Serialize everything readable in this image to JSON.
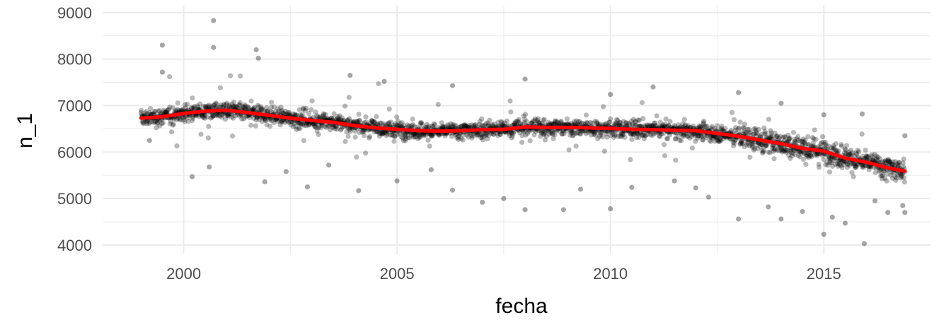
{
  "chart_data": {
    "type": "scatter",
    "xlabel": "fecha",
    "ylabel": "n_1",
    "xlim": [
      1998.1,
      2017.5
    ],
    "ylim": [
      3800,
      9150
    ],
    "x_ticks": [
      2000,
      2005,
      2010,
      2015
    ],
    "x_tick_labels": [
      "2000",
      "2005",
      "2010",
      "2015"
    ],
    "y_ticks": [
      4000,
      5000,
      6000,
      7000,
      8000,
      9000
    ],
    "y_tick_labels": [
      "4000",
      "5000",
      "6000",
      "7000",
      "8000",
      "9000"
    ],
    "grid": true,
    "legend": "none",
    "colors": {
      "points": "#000000",
      "trend": "#ff0000",
      "grid": "#ebebeb"
    },
    "trend": {
      "x": [
        1999.0,
        1999.5,
        2000.0,
        2000.5,
        2001.0,
        2001.5,
        2002.0,
        2002.5,
        2003.0,
        2003.5,
        2004.0,
        2004.5,
        2005.0,
        2005.5,
        2006.0,
        2006.5,
        2007.0,
        2007.5,
        2008.0,
        2008.5,
        2009.0,
        2009.5,
        2010.0,
        2010.5,
        2011.0,
        2011.5,
        2012.0,
        2012.5,
        2013.0,
        2013.5,
        2014.0,
        2014.5,
        2015.0,
        2015.5,
        2016.0,
        2016.5,
        2016.9
      ],
      "y": [
        6730,
        6760,
        6830,
        6880,
        6900,
        6850,
        6790,
        6730,
        6680,
        6640,
        6570,
        6520,
        6490,
        6460,
        6450,
        6460,
        6480,
        6490,
        6540,
        6530,
        6530,
        6520,
        6510,
        6490,
        6480,
        6470,
        6460,
        6400,
        6340,
        6260,
        6180,
        6080,
        6020,
        5870,
        5780,
        5660,
        5590
      ]
    },
    "outliers": {
      "x": [
        1999.5,
        2000.7,
        2000.7,
        2001.7,
        2001.75,
        1999.5,
        2003.9,
        2004.7,
        2006.3,
        2008.0,
        2010.0,
        2011.0,
        2013.0,
        2014.0,
        2015.0,
        2015.9,
        2016.9,
        2000.2,
        2001.9,
        2002.9,
        2004.1,
        2005.0,
        2006.3,
        2007.0,
        2008.0,
        2008.9,
        2010.0,
        2010.5,
        2012.0,
        2013.0,
        2014.0,
        2014.5,
        2015.0,
        2015.5,
        2015.95,
        2016.5,
        2016.9,
        1999.2,
        2000.6,
        2002.4,
        2003.4,
        2005.8,
        2007.5,
        2009.3,
        2011.5,
        2012.3,
        2013.7,
        2015.2,
        2016.2,
        2016.85
      ],
      "y": [
        8300,
        8830,
        8250,
        8200,
        8020,
        7720,
        7650,
        7520,
        7430,
        7570,
        7240,
        7400,
        7280,
        7050,
        6800,
        6820,
        6350,
        5470,
        5360,
        5250,
        5170,
        5380,
        5180,
        4920,
        4760,
        4760,
        4780,
        5240,
        5230,
        4560,
        4560,
        4720,
        4230,
        4470,
        4030,
        4700,
        4700,
        6250,
        5680,
        5580,
        5720,
        5620,
        5000,
        5200,
        5380,
        5030,
        4820,
        4600,
        4950,
        4850
      ]
    }
  }
}
